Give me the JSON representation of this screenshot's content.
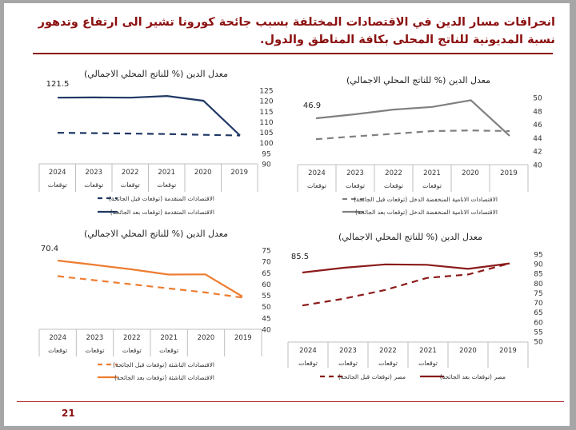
{
  "slide": {
    "title": "انحرافات مسار الدين في الاقتصادات المختلفة بسبب جائحة كورونا تشير الى ارتفاع وتدهور نسبة المديونية للناتج المحلى بكافة المناطق  والدول.",
    "page_number": "21",
    "accent_color": "#8b1010"
  },
  "chart_data": [
    {
      "type": "line",
      "title": "معدل الدين (% للناتج المحلي الاجمالي)",
      "categories": [
        "2024",
        "2023",
        "2022",
        "2021",
        "2020",
        "2019"
      ],
      "category_sublabels": [
        "توقعات",
        "توقعات",
        "توقعات",
        "توقعات",
        "",
        ""
      ],
      "ylim": [
        90,
        125
      ],
      "yticks": [
        "125",
        "120",
        "115",
        "110",
        "105",
        "100",
        "95",
        "90"
      ],
      "y_axis_side": "right",
      "data_label": "121.5",
      "legend_placement": "bottom",
      "series": [
        {
          "name": "الاقتصادات المتقدمة (توقعات قبل الجائحة)",
          "style": "dashed",
          "color": "#1f3864",
          "values": [
            104.8,
            104.6,
            104.4,
            104.2,
            103.8,
            103.5
          ]
        },
        {
          "name": "الاقتصادات المتقدمة (توقعات بعد الجائحة)",
          "style": "solid",
          "color": "#1f3864",
          "values": [
            121.5,
            121.6,
            121.5,
            122.3,
            120.0,
            103.5
          ]
        }
      ]
    },
    {
      "type": "line",
      "title": "معدل الدين (% للناتج المحلي الاجمالي)",
      "categories": [
        "2024",
        "2023",
        "2022",
        "2021",
        "2020",
        "2019"
      ],
      "category_sublabels": [
        "توقعات",
        "توقعات",
        "توقعات",
        "توقعات",
        "",
        ""
      ],
      "ylim": [
        40,
        50
      ],
      "yticks": [
        "50",
        "48",
        "46",
        "44",
        "42",
        "40"
      ],
      "y_axis_side": "right",
      "data_label": "46.9",
      "legend_placement": "bottom",
      "series": [
        {
          "name": "الاقتصادات الانامية المنخفضة الدخل (توقعات قبل الجائحة)",
          "style": "dashed",
          "color": "#808080",
          "values": [
            43.8,
            44.2,
            44.6,
            45.0,
            45.1,
            45.0
          ]
        },
        {
          "name": "الاقتصادات الانامية المنخفضة الدخل (توقعات بعد الجائحة)",
          "style": "solid",
          "color": "#808080",
          "values": [
            46.9,
            47.5,
            48.2,
            48.6,
            49.6,
            44.3
          ]
        }
      ]
    },
    {
      "type": "line",
      "title": "معدل الدين (% للناتج المحلي الاجمالي)",
      "categories": [
        "2024",
        "2023",
        "2022",
        "2021",
        "2020",
        "2019"
      ],
      "category_sublabels": [
        "توقعات",
        "توقعات",
        "توقعات",
        "توقعات",
        "",
        ""
      ],
      "ylim": [
        40,
        75
      ],
      "yticks": [
        "75",
        "70",
        "65",
        "60",
        "55",
        "50",
        "45",
        "40"
      ],
      "y_axis_side": "right",
      "data_label": "70.4",
      "legend_placement": "bottom",
      "series": [
        {
          "name": "الاقتصادات الناشئة (توقعات قبل الجائحة)",
          "style": "dashed",
          "color": "#ed7d31",
          "values": [
            63.5,
            61.7,
            59.9,
            58.1,
            56.3,
            54.0
          ]
        },
        {
          "name": "الاقتصادات الناشئة  (توقعات بعد الجائحة)",
          "style": "solid",
          "color": "#ed7d31",
          "values": [
            70.4,
            68.5,
            66.5,
            64.2,
            64.3,
            54.5
          ]
        }
      ]
    },
    {
      "type": "line",
      "title": "معدل الدين (% للناتج المحلي الاجمالي)",
      "categories": [
        "2024",
        "2023",
        "2022",
        "2021",
        "2020",
        "2019"
      ],
      "category_sublabels": [
        "توقعات",
        "توقعات",
        "توقعات",
        "توقعات",
        "",
        ""
      ],
      "ylim": [
        50,
        95
      ],
      "yticks": [
        "95",
        "90",
        "85",
        "80",
        "75",
        "70",
        "65",
        "60",
        "55",
        "50"
      ],
      "y_axis_side": "right",
      "data_label": "85.5",
      "legend_placement": "bottom",
      "series": [
        {
          "name": "مصر (توقعات قبل الجائحة)",
          "style": "dashed",
          "color": "#8b1a1a",
          "values": [
            68.5,
            72.0,
            76.5,
            82.7,
            84.5,
            90.2
          ]
        },
        {
          "name": "مصر (توقعات بعد الجائحة)",
          "style": "solid",
          "color": "#8b1a1a",
          "values": [
            85.5,
            88.0,
            89.7,
            89.5,
            87.4,
            90.2
          ]
        }
      ]
    }
  ]
}
